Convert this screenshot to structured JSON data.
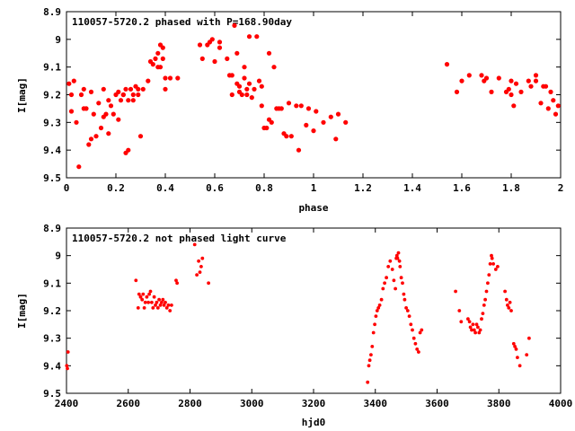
{
  "chart_data": [
    {
      "type": "scatter",
      "title": "110057-5720.2 phased with P=168.90day",
      "xlabel": "phase",
      "ylabel": "I[mag]",
      "xlim": [
        0,
        2
      ],
      "ylim": [
        9.5,
        8.9
      ],
      "y_inverted": true,
      "grid": false,
      "xticks": [
        0,
        0.2,
        0.4,
        0.6,
        0.8,
        1,
        1.2,
        1.4,
        1.6,
        1.8,
        2
      ],
      "xtick_labels": [
        "0",
        "0.2",
        "0.4",
        "0.6",
        "0.8",
        "1",
        "1.2",
        "1.4",
        "1.6",
        "1.8",
        "2"
      ],
      "yticks": [
        8.9,
        9,
        9.1,
        9.2,
        9.3,
        9.4,
        9.5
      ],
      "ytick_labels": [
        "8.9",
        "9",
        "9.1",
        "9.2",
        "9.3",
        "9.4",
        "9.5"
      ],
      "marker_color": "#ff0000",
      "points": [
        [
          0.01,
          9.16
        ],
        [
          0.02,
          9.26
        ],
        [
          0.02,
          9.2
        ],
        [
          0.03,
          9.15
        ],
        [
          0.04,
          9.3
        ],
        [
          0.05,
          9.46
        ],
        [
          0.06,
          9.2
        ],
        [
          0.07,
          9.18
        ],
        [
          0.07,
          9.25
        ],
        [
          0.08,
          9.25
        ],
        [
          0.09,
          9.38
        ],
        [
          0.1,
          9.36
        ],
        [
          0.1,
          9.19
        ],
        [
          0.11,
          9.27
        ],
        [
          0.12,
          9.35
        ],
        [
          0.13,
          9.23
        ],
        [
          0.14,
          9.32
        ],
        [
          0.15,
          9.18
        ],
        [
          0.15,
          9.28
        ],
        [
          0.16,
          9.27
        ],
        [
          0.17,
          9.22
        ],
        [
          0.17,
          9.34
        ],
        [
          0.18,
          9.24
        ],
        [
          0.19,
          9.27
        ],
        [
          0.2,
          9.2
        ],
        [
          0.21,
          9.29
        ],
        [
          0.21,
          9.19
        ],
        [
          0.22,
          9.22
        ],
        [
          0.23,
          9.2
        ],
        [
          0.23,
          9.2
        ],
        [
          0.24,
          9.41
        ],
        [
          0.24,
          9.18
        ],
        [
          0.25,
          9.22
        ],
        [
          0.25,
          9.4
        ],
        [
          0.26,
          9.18
        ],
        [
          0.27,
          9.2
        ],
        [
          0.27,
          9.22
        ],
        [
          0.28,
          9.17
        ],
        [
          0.29,
          9.2
        ],
        [
          0.29,
          9.18
        ],
        [
          0.3,
          9.35
        ],
        [
          0.31,
          9.18
        ],
        [
          0.33,
          9.15
        ],
        [
          0.34,
          9.08
        ],
        [
          0.35,
          9.09
        ],
        [
          0.36,
          9.07
        ],
        [
          0.37,
          9.1
        ],
        [
          0.37,
          9.05
        ],
        [
          0.38,
          9.1
        ],
        [
          0.38,
          9.02
        ],
        [
          0.39,
          9.03
        ],
        [
          0.39,
          9.07
        ],
        [
          0.4,
          9.14
        ],
        [
          0.4,
          9.18
        ],
        [
          0.42,
          9.14
        ],
        [
          0.45,
          9.14
        ],
        [
          0.54,
          9.02
        ],
        [
          0.55,
          9.07
        ],
        [
          0.57,
          9.02
        ],
        [
          0.58,
          9.01
        ],
        [
          0.59,
          9.0
        ],
        [
          0.6,
          9.08
        ],
        [
          0.62,
          9.01
        ],
        [
          0.62,
          9.03
        ],
        [
          0.65,
          9.07
        ],
        [
          0.66,
          9.13
        ],
        [
          0.67,
          9.2
        ],
        [
          0.67,
          9.13
        ],
        [
          0.68,
          8.95
        ],
        [
          0.69,
          9.16
        ],
        [
          0.69,
          9.05
        ],
        [
          0.7,
          9.17
        ],
        [
          0.7,
          9.19
        ],
        [
          0.71,
          9.2
        ],
        [
          0.72,
          9.1
        ],
        [
          0.72,
          9.14
        ],
        [
          0.73,
          9.18
        ],
        [
          0.73,
          9.2
        ],
        [
          0.74,
          8.99
        ],
        [
          0.74,
          9.16
        ],
        [
          0.75,
          9.21
        ],
        [
          0.76,
          9.18
        ],
        [
          0.77,
          8.99
        ],
        [
          0.78,
          9.15
        ],
        [
          0.79,
          9.17
        ],
        [
          0.79,
          9.24
        ],
        [
          0.8,
          9.32
        ],
        [
          0.81,
          9.32
        ],
        [
          0.82,
          9.05
        ],
        [
          0.82,
          9.29
        ],
        [
          0.83,
          9.3
        ],
        [
          0.84,
          9.1
        ],
        [
          0.85,
          9.25
        ],
        [
          0.86,
          9.25
        ],
        [
          0.87,
          9.25
        ],
        [
          0.88,
          9.34
        ],
        [
          0.89,
          9.35
        ],
        [
          0.9,
          9.23
        ],
        [
          0.91,
          9.35
        ],
        [
          0.93,
          9.24
        ],
        [
          0.94,
          9.4
        ],
        [
          0.95,
          9.24
        ],
        [
          0.97,
          9.31
        ],
        [
          0.98,
          9.25
        ],
        [
          1.0,
          9.33
        ],
        [
          1.01,
          9.26
        ],
        [
          1.04,
          9.3
        ],
        [
          1.07,
          9.28
        ],
        [
          1.09,
          9.36
        ],
        [
          1.1,
          9.27
        ],
        [
          1.13,
          9.3
        ],
        [
          1.54,
          9.09
        ],
        [
          1.58,
          9.19
        ],
        [
          1.6,
          9.15
        ],
        [
          1.63,
          9.13
        ],
        [
          1.68,
          9.13
        ],
        [
          1.69,
          9.15
        ],
        [
          1.7,
          9.14
        ],
        [
          1.72,
          9.19
        ],
        [
          1.75,
          9.14
        ],
        [
          1.78,
          9.19
        ],
        [
          1.79,
          9.18
        ],
        [
          1.8,
          9.15
        ],
        [
          1.8,
          9.2
        ],
        [
          1.81,
          9.24
        ],
        [
          1.82,
          9.16
        ],
        [
          1.84,
          9.19
        ],
        [
          1.87,
          9.15
        ],
        [
          1.88,
          9.17
        ],
        [
          1.9,
          9.13
        ],
        [
          1.9,
          9.15
        ],
        [
          1.92,
          9.23
        ],
        [
          1.93,
          9.17
        ],
        [
          1.94,
          9.17
        ],
        [
          1.95,
          9.25
        ],
        [
          1.96,
          9.19
        ],
        [
          1.97,
          9.22
        ],
        [
          1.98,
          9.27
        ],
        [
          1.99,
          9.24
        ]
      ]
    },
    {
      "type": "scatter",
      "title": "110057-5720.2 not phased light curve",
      "xlabel": "hjd0",
      "ylabel": "I[mag]",
      "xlim": [
        2400,
        4000
      ],
      "ylim": [
        9.5,
        8.9
      ],
      "y_inverted": true,
      "grid": false,
      "xticks": [
        2400,
        2600,
        2800,
        3000,
        3200,
        3400,
        3600,
        3800,
        4000
      ],
      "xtick_labels": [
        "2400",
        "2600",
        "2800",
        "3000",
        "3200",
        "3400",
        "3600",
        "3800",
        "4000"
      ],
      "yticks": [
        8.9,
        9,
        9.1,
        9.2,
        9.3,
        9.4,
        9.5
      ],
      "ytick_labels": [
        "8.9",
        "9",
        "9.1",
        "9.2",
        "9.3",
        "9.4",
        "9.5"
      ],
      "marker_color": "#ff0000",
      "points": [
        [
          2401,
          9.4
        ],
        [
          2403,
          9.41
        ],
        [
          2405,
          9.35
        ],
        [
          2625,
          9.09
        ],
        [
          2632,
          9.19
        ],
        [
          2635,
          9.14
        ],
        [
          2640,
          9.15
        ],
        [
          2645,
          9.16
        ],
        [
          2648,
          9.14
        ],
        [
          2652,
          9.19
        ],
        [
          2655,
          9.17
        ],
        [
          2660,
          9.15
        ],
        [
          2665,
          9.17
        ],
        [
          2668,
          9.14
        ],
        [
          2672,
          9.13
        ],
        [
          2676,
          9.17
        ],
        [
          2680,
          9.19
        ],
        [
          2684,
          9.15
        ],
        [
          2688,
          9.18
        ],
        [
          2692,
          9.17
        ],
        [
          2696,
          9.19
        ],
        [
          2700,
          9.16
        ],
        [
          2704,
          9.18
        ],
        [
          2708,
          9.17
        ],
        [
          2712,
          9.16
        ],
        [
          2716,
          9.18
        ],
        [
          2720,
          9.17
        ],
        [
          2725,
          9.19
        ],
        [
          2730,
          9.18
        ],
        [
          2735,
          9.2
        ],
        [
          2740,
          9.18
        ],
        [
          2755,
          9.09
        ],
        [
          2758,
          9.1
        ],
        [
          2815,
          8.96
        ],
        [
          2822,
          9.07
        ],
        [
          2828,
          9.02
        ],
        [
          2832,
          9.06
        ],
        [
          2836,
          9.04
        ],
        [
          2840,
          9.01
        ],
        [
          2860,
          9.1
        ],
        [
          3375,
          9.46
        ],
        [
          3379,
          9.4
        ],
        [
          3382,
          9.38
        ],
        [
          3386,
          9.36
        ],
        [
          3390,
          9.33
        ],
        [
          3394,
          9.28
        ],
        [
          3398,
          9.25
        ],
        [
          3402,
          9.22
        ],
        [
          3406,
          9.2
        ],
        [
          3410,
          9.19
        ],
        [
          3414,
          9.18
        ],
        [
          3420,
          9.16
        ],
        [
          3425,
          9.12
        ],
        [
          3430,
          9.1
        ],
        [
          3436,
          9.08
        ],
        [
          3442,
          9.04
        ],
        [
          3448,
          9.02
        ],
        [
          3455,
          9.05
        ],
        [
          3460,
          9.09
        ],
        [
          3465,
          9.12
        ],
        [
          3468,
          9.01
        ],
        [
          3470,
          9.0
        ],
        [
          3472,
          9.01
        ],
        [
          3475,
          8.99
        ],
        [
          3478,
          9.02
        ],
        [
          3480,
          9.04
        ],
        [
          3484,
          9.08
        ],
        [
          3488,
          9.1
        ],
        [
          3492,
          9.14
        ],
        [
          3495,
          9.16
        ],
        [
          3500,
          9.19
        ],
        [
          3505,
          9.2
        ],
        [
          3510,
          9.22
        ],
        [
          3515,
          9.25
        ],
        [
          3520,
          9.27
        ],
        [
          3525,
          9.3
        ],
        [
          3530,
          9.32
        ],
        [
          3535,
          9.34
        ],
        [
          3540,
          9.35
        ],
        [
          3545,
          9.28
        ],
        [
          3550,
          9.27
        ],
        [
          3660,
          9.13
        ],
        [
          3672,
          9.2
        ],
        [
          3678,
          9.24
        ],
        [
          3700,
          9.23
        ],
        [
          3705,
          9.24
        ],
        [
          3708,
          9.26
        ],
        [
          3712,
          9.27
        ],
        [
          3716,
          9.25
        ],
        [
          3720,
          9.27
        ],
        [
          3724,
          9.28
        ],
        [
          3728,
          9.25
        ],
        [
          3732,
          9.26
        ],
        [
          3736,
          9.28
        ],
        [
          3740,
          9.27
        ],
        [
          3744,
          9.23
        ],
        [
          3748,
          9.21
        ],
        [
          3752,
          9.18
        ],
        [
          3756,
          9.16
        ],
        [
          3760,
          9.13
        ],
        [
          3764,
          9.1
        ],
        [
          3768,
          9.07
        ],
        [
          3772,
          9.03
        ],
        [
          3776,
          9.0
        ],
        [
          3778,
          9.01
        ],
        [
          3782,
          9.03
        ],
        [
          3790,
          9.05
        ],
        [
          3796,
          9.04
        ],
        [
          3820,
          9.13
        ],
        [
          3825,
          9.16
        ],
        [
          3828,
          9.18
        ],
        [
          3832,
          9.19
        ],
        [
          3836,
          9.17
        ],
        [
          3840,
          9.2
        ],
        [
          3848,
          9.32
        ],
        [
          3852,
          9.33
        ],
        [
          3856,
          9.34
        ],
        [
          3860,
          9.37
        ],
        [
          3868,
          9.4
        ],
        [
          3890,
          9.36
        ],
        [
          3898,
          9.3
        ]
      ]
    }
  ]
}
